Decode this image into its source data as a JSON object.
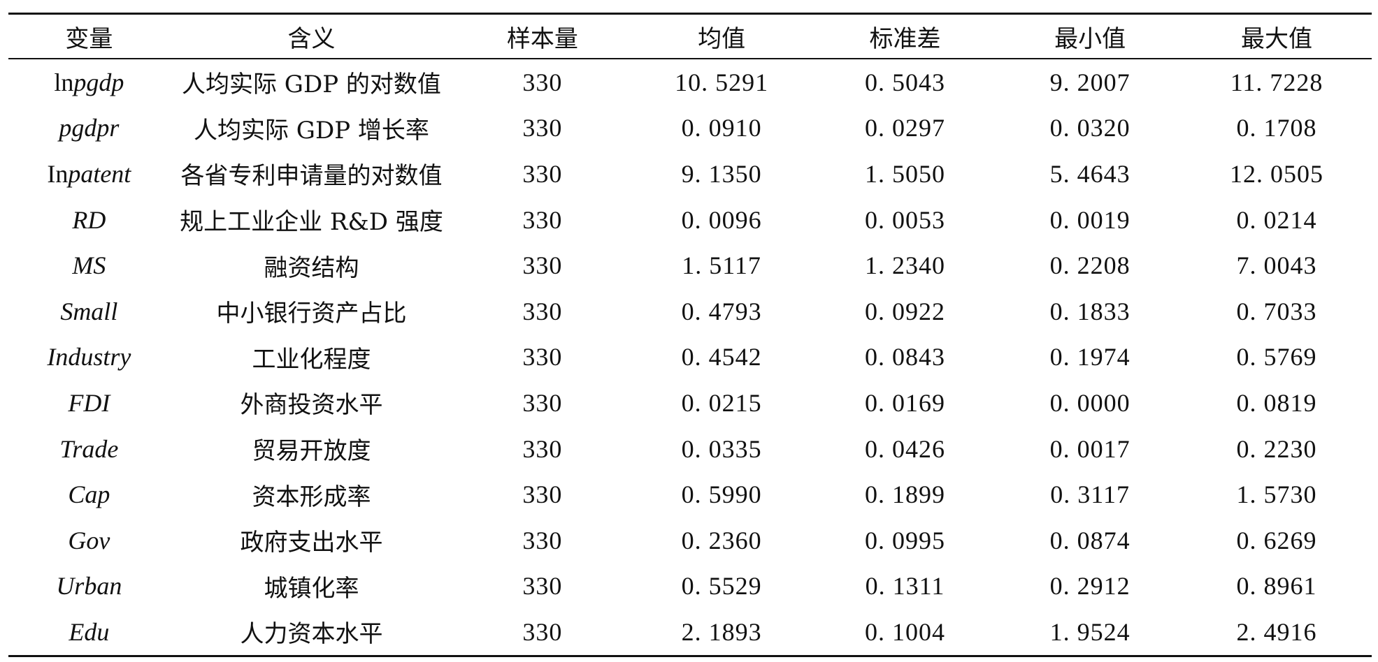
{
  "table": {
    "headers": [
      "变量",
      "含义",
      "样本量",
      "均值",
      "标准差",
      "最小值",
      "最大值"
    ],
    "rows": [
      {
        "var_plain": "ln",
        "var_italic": "pgdp",
        "meaning": "人均实际 GDP 的对数值",
        "n": "330",
        "mean": "10. 5291",
        "sd": "0. 5043",
        "min": "9. 2007",
        "max": "11. 7228"
      },
      {
        "var_plain": "",
        "var_italic": "pgdpr",
        "meaning": "人均实际 GDP 增长率",
        "n": "330",
        "mean": "0. 0910",
        "sd": "0. 0297",
        "min": "0. 0320",
        "max": "0. 1708"
      },
      {
        "var_plain": "In",
        "var_italic": "patent",
        "meaning": "各省专利申请量的对数值",
        "n": "330",
        "mean": "9. 1350",
        "sd": "1. 5050",
        "min": "5. 4643",
        "max": "12. 0505"
      },
      {
        "var_plain": "",
        "var_italic": "RD",
        "meaning": "规上工业企业 R&D 强度",
        "n": "330",
        "mean": "0. 0096",
        "sd": "0. 0053",
        "min": "0. 0019",
        "max": "0. 0214"
      },
      {
        "var_plain": "",
        "var_italic": "MS",
        "meaning": "融资结构",
        "n": "330",
        "mean": "1. 5117",
        "sd": "1. 2340",
        "min": "0. 2208",
        "max": "7. 0043"
      },
      {
        "var_plain": "",
        "var_italic": "Small",
        "meaning": "中小银行资产占比",
        "n": "330",
        "mean": "0. 4793",
        "sd": "0. 0922",
        "min": "0. 1833",
        "max": "0. 7033"
      },
      {
        "var_plain": "",
        "var_italic": "Industry",
        "meaning": "工业化程度",
        "n": "330",
        "mean": "0. 4542",
        "sd": "0. 0843",
        "min": "0. 1974",
        "max": "0. 5769"
      },
      {
        "var_plain": "",
        "var_italic": "FDI",
        "meaning": "外商投资水平",
        "n": "330",
        "mean": "0. 0215",
        "sd": "0. 0169",
        "min": "0. 0000",
        "max": "0. 0819"
      },
      {
        "var_plain": "",
        "var_italic": "Trade",
        "meaning": "贸易开放度",
        "n": "330",
        "mean": "0. 0335",
        "sd": "0. 0426",
        "min": "0. 0017",
        "max": "0. 2230"
      },
      {
        "var_plain": "",
        "var_italic": "Cap",
        "meaning": "资本形成率",
        "n": "330",
        "mean": "0. 5990",
        "sd": "0. 1899",
        "min": "0. 3117",
        "max": "1. 5730"
      },
      {
        "var_plain": "",
        "var_italic": "Gov",
        "meaning": "政府支出水平",
        "n": "330",
        "mean": "0. 2360",
        "sd": "0. 0995",
        "min": "0. 0874",
        "max": "0. 6269"
      },
      {
        "var_plain": "",
        "var_italic": "Urban",
        "meaning": "城镇化率",
        "n": "330",
        "mean": "0. 5529",
        "sd": "0. 1311",
        "min": "0. 2912",
        "max": "0. 8961"
      },
      {
        "var_plain": "",
        "var_italic": "Edu",
        "meaning": "人力资本水平",
        "n": "330",
        "mean": "2. 1893",
        "sd": "0. 1004",
        "min": "1. 9524",
        "max": "2. 4916"
      }
    ]
  }
}
